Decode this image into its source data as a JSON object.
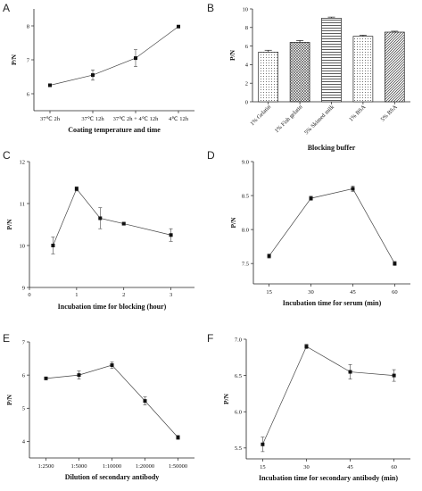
{
  "chart_data": [
    {
      "panel": "A",
      "type": "line",
      "categories": [
        "37℃ 2h",
        "37℃ 12h",
        "37℃ 2h + 4℃ 12h",
        "4℃ 12h"
      ],
      "values": [
        6.25,
        6.55,
        7.05,
        7.98
      ],
      "errors": [
        0.02,
        0.15,
        0.25,
        0.02
      ],
      "ylim": [
        5.5,
        8.5
      ],
      "yticks": [
        6,
        7,
        8
      ],
      "xlabel": "Coating temperature and time",
      "ylabel": "P/N",
      "marker": "square"
    },
    {
      "panel": "B",
      "type": "bar",
      "categories": [
        "1% Gelatin",
        "1% Fish gelatin",
        "5% Skimed milk",
        "1% BSA",
        "5% BSA"
      ],
      "values": [
        5.35,
        6.4,
        9.0,
        7.05,
        7.5
      ],
      "errors": [
        0.2,
        0.2,
        0.12,
        0.12,
        0.1
      ],
      "patterns": [
        "dots",
        "crosshatch",
        "horizontal",
        "dots",
        "diagonal"
      ],
      "ylim": [
        0,
        10
      ],
      "yticks": [
        0,
        2,
        4,
        6,
        8,
        10
      ],
      "xlabel": "Blocking buffer",
      "ylabel": "P/N"
    },
    {
      "panel": "C",
      "type": "line",
      "x": [
        0.5,
        1,
        1.5,
        2,
        3
      ],
      "values": [
        10.0,
        11.35,
        10.65,
        10.52,
        10.25
      ],
      "errors": [
        0.2,
        0.05,
        0.25,
        0.03,
        0.15
      ],
      "xlim": [
        0,
        3.5
      ],
      "xticks": [
        0,
        1,
        2,
        3
      ],
      "ylim": [
        9,
        12
      ],
      "yticks": [
        9,
        10,
        11,
        12
      ],
      "xlabel": "Incubation time for blocking (hour)",
      "ylabel": "P/N",
      "marker": "square"
    },
    {
      "panel": "D",
      "type": "line",
      "categories": [
        "15",
        "30",
        "45",
        "60"
      ],
      "values": [
        7.61,
        8.46,
        8.6,
        7.5
      ],
      "errors": [
        0.03,
        0.03,
        0.04,
        0.03
      ],
      "ylim": [
        7.2,
        9.0
      ],
      "yticks": [
        7.5,
        8.0,
        8.5,
        9.0
      ],
      "ytick_labels": [
        "7.5",
        "8.0",
        "8.5",
        "9.0"
      ],
      "xlabel": "Incubation time for serum (min)",
      "ylabel": "P/N",
      "marker": "square"
    },
    {
      "panel": "E",
      "type": "line",
      "categories": [
        "1:2500",
        "1:5000",
        "1:10000",
        "1:20000",
        "1:50000"
      ],
      "values": [
        5.9,
        6.0,
        6.3,
        5.22,
        4.12
      ],
      "errors": [
        0.02,
        0.12,
        0.1,
        0.12,
        0.06
      ],
      "ylim": [
        3.5,
        7.0
      ],
      "yticks": [
        4,
        5,
        6,
        7
      ],
      "xlabel": "Dilution of secondary antibody",
      "ylabel": "P/N",
      "marker": "square"
    },
    {
      "panel": "F",
      "type": "line",
      "categories": [
        "15",
        "30",
        "45",
        "60"
      ],
      "values": [
        5.55,
        6.9,
        6.55,
        6.5
      ],
      "errors": [
        0.1,
        0.03,
        0.1,
        0.08
      ],
      "ylim": [
        5.35,
        7.0
      ],
      "yticks": [
        5.5,
        6.0,
        6.5,
        7.0
      ],
      "ytick_labels": [
        "5.5",
        "6.0",
        "6.5",
        "7.0"
      ],
      "xlabel": "Incubation time for secondary antibody (min)",
      "ylabel": "P/N",
      "marker": "square"
    }
  ]
}
